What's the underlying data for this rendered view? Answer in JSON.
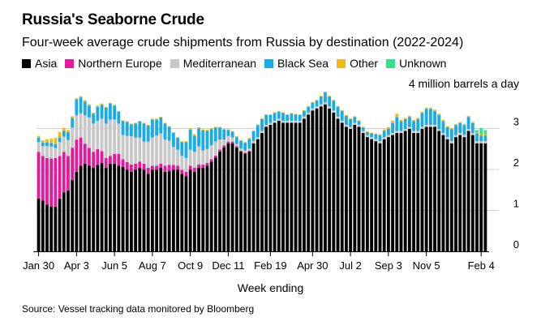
{
  "chart_data": {
    "type": "bar",
    "stacked": true,
    "title": "Russia's Seaborne Crude",
    "subtitle": "Four-week average crude shipments from Russia by destination (2022-2024)",
    "unit_label": "4 million barrels a day",
    "xlabel": "Week ending",
    "source": "Source: Vessel tracking data monitored by Bloomberg",
    "ylim": [
      0,
      4
    ],
    "y_ticks": [
      "0",
      "1",
      "2",
      "3"
    ],
    "x_tick_labels": [
      {
        "label": "Jan 30",
        "index": 0
      },
      {
        "label": "Apr 3",
        "index": 9
      },
      {
        "label": "Jun 5",
        "index": 18
      },
      {
        "label": "Aug 7",
        "index": 27
      },
      {
        "label": "Oct 9",
        "index": 36
      },
      {
        "label": "Dec 11",
        "index": 45
      },
      {
        "label": "Feb 19",
        "index": 55
      },
      {
        "label": "Apr 30",
        "index": 65
      },
      {
        "label": "Jul 2",
        "index": 74
      },
      {
        "label": "Sep 3",
        "index": 83
      },
      {
        "label": "Nov 5",
        "index": 92
      },
      {
        "label": "Feb 4",
        "index": 105
      }
    ],
    "legend": [
      {
        "name": "Asia",
        "color": "#000000"
      },
      {
        "name": "Northern Europe",
        "color": "#e6199a"
      },
      {
        "name": "Mediterranean",
        "color": "#c8c8c8"
      },
      {
        "name": "Black Sea",
        "color": "#1aace8"
      },
      {
        "name": "Other",
        "color": "#f2b90f"
      },
      {
        "name": "Unknown",
        "color": "#33e08c"
      }
    ],
    "series": [
      {
        "name": "Asia",
        "color": "#000000",
        "values": [
          1.29,
          1.24,
          1.14,
          1.09,
          1.09,
          1.29,
          1.44,
          1.49,
          1.74,
          1.94,
          2.09,
          2.14,
          2.09,
          2.04,
          2.11,
          2.16,
          2.04,
          2.14,
          2.14,
          2.09,
          2.06,
          1.99,
          1.94,
          1.99,
          2.04,
          1.99,
          1.89,
          1.99,
          1.99,
          2.04,
          1.94,
          1.96,
          1.99,
          1.99,
          1.89,
          1.84,
          1.99,
          1.94,
          2.04,
          2.04,
          2.09,
          2.19,
          2.29,
          2.44,
          2.54,
          2.64,
          2.64,
          2.54,
          2.44,
          2.39,
          2.44,
          2.64,
          2.74,
          2.89,
          3.04,
          3.09,
          3.14,
          3.19,
          3.14,
          3.14,
          3.14,
          3.14,
          3.14,
          3.24,
          3.34,
          3.44,
          3.49,
          3.54,
          3.59,
          3.49,
          3.39,
          3.24,
          3.14,
          3.04,
          2.99,
          3.09,
          3.04,
          2.89,
          2.79,
          2.74,
          2.69,
          2.64,
          2.74,
          2.79,
          2.84,
          2.89,
          2.89,
          2.94,
          2.99,
          2.89,
          2.89,
          2.99,
          3.04,
          3.04,
          3.04,
          2.94,
          2.84,
          2.74,
          2.64,
          2.79,
          2.84,
          2.79,
          2.94,
          2.84,
          2.64,
          2.64,
          2.64
        ]
      },
      {
        "name": "Northern Europe",
        "color": "#e6199a",
        "values": [
          1.14,
          1.09,
          1.14,
          1.18,
          1.19,
          1.04,
          0.99,
          0.84,
          0.79,
          0.79,
          0.69,
          0.49,
          0.44,
          0.39,
          0.39,
          0.29,
          0.24,
          0.19,
          0.24,
          0.29,
          0.19,
          0.19,
          0.18,
          0.15,
          0.15,
          0.15,
          0.15,
          0.1,
          0.1,
          0.1,
          0.15,
          0.15,
          0.12,
          0.1,
          0.1,
          0.1,
          0.1,
          0.1,
          0.08,
          0.08,
          0.07,
          0.06,
          0.05,
          0.05,
          0.05,
          0.04,
          0.04,
          0.03,
          0.02,
          0.02,
          0.02,
          0.0,
          0.0,
          0.0,
          0.0,
          0.0,
          0.0,
          0.0,
          0.0,
          0.0,
          0.0,
          0.0,
          0.0,
          0.0,
          0.0,
          0.0,
          0.0,
          0.0,
          0.0,
          0.0,
          0.0,
          0.0,
          0.0,
          0.0,
          0.0,
          0.0,
          0.0,
          0.0,
          0.0,
          0.0,
          0.0,
          0.0,
          0.0,
          0.0,
          0.0,
          0.0,
          0.0,
          0.0,
          0.0,
          0.0,
          0.0,
          0.0,
          0.0,
          0.0,
          0.0,
          0.0,
          0.0,
          0.0,
          0.0,
          0.0,
          0.0,
          0.0,
          0.0,
          0.0,
          0.0,
          0.0,
          0.0
        ]
      },
      {
        "name": "Mediterranean",
        "color": "#c8c8c8",
        "values": [
          0.24,
          0.24,
          0.29,
          0.29,
          0.24,
          0.34,
          0.37,
          0.39,
          0.49,
          0.59,
          0.59,
          0.69,
          0.74,
          0.69,
          0.69,
          0.79,
          0.84,
          0.89,
          0.84,
          0.74,
          0.59,
          0.64,
          0.69,
          0.64,
          0.59,
          0.54,
          0.64,
          0.69,
          0.74,
          0.74,
          0.64,
          0.59,
          0.44,
          0.39,
          0.34,
          0.34,
          0.39,
          0.39,
          0.44,
          0.34,
          0.34,
          0.34,
          0.34,
          0.24,
          0.14,
          0.14,
          0.1,
          0.05,
          0.05,
          0.05,
          0.05,
          0.05,
          0.05,
          0.05,
          0.05,
          0.05,
          0.05,
          0.05,
          0.05,
          0.05,
          0.05,
          0.05,
          0.05,
          0.05,
          0.05,
          0.05,
          0.05,
          0.05,
          0.05,
          0.05,
          0.05,
          0.05,
          0.05,
          0.05,
          0.05,
          0.05,
          0.05,
          0.05,
          0.05,
          0.05,
          0.05,
          0.05,
          0.05,
          0.05,
          0.05,
          0.05,
          0.05,
          0.05,
          0.05,
          0.05,
          0.05,
          0.05,
          0.05,
          0.05,
          0.05,
          0.05,
          0.05,
          0.05,
          0.05,
          0.05,
          0.05,
          0.05,
          0.05,
          0.05,
          0.05,
          0.05,
          0.05
        ]
      },
      {
        "name": "Black Sea",
        "color": "#1aace8",
        "values": [
          0.1,
          0.09,
          0.09,
          0.09,
          0.1,
          0.11,
          0.14,
          0.19,
          0.24,
          0.39,
          0.39,
          0.34,
          0.29,
          0.24,
          0.34,
          0.34,
          0.39,
          0.39,
          0.34,
          0.29,
          0.34,
          0.34,
          0.29,
          0.34,
          0.39,
          0.44,
          0.39,
          0.44,
          0.39,
          0.39,
          0.39,
          0.34,
          0.34,
          0.29,
          0.34,
          0.39,
          0.49,
          0.39,
          0.44,
          0.49,
          0.44,
          0.39,
          0.34,
          0.29,
          0.24,
          0.14,
          0.14,
          0.17,
          0.19,
          0.19,
          0.24,
          0.24,
          0.29,
          0.29,
          0.24,
          0.19,
          0.19,
          0.17,
          0.19,
          0.14,
          0.17,
          0.15,
          0.14,
          0.14,
          0.14,
          0.14,
          0.14,
          0.19,
          0.24,
          0.24,
          0.24,
          0.24,
          0.24,
          0.22,
          0.19,
          0.14,
          0.09,
          0.08,
          0.07,
          0.09,
          0.12,
          0.15,
          0.15,
          0.15,
          0.24,
          0.34,
          0.24,
          0.24,
          0.24,
          0.24,
          0.29,
          0.34,
          0.39,
          0.39,
          0.34,
          0.34,
          0.29,
          0.24,
          0.29,
          0.24,
          0.24,
          0.24,
          0.29,
          0.24,
          0.19,
          0.14,
          0.14
        ]
      },
      {
        "name": "Other",
        "color": "#f2b90f",
        "values": [
          0.05,
          0.05,
          0.08,
          0.1,
          0.15,
          0.14,
          0.08,
          0.05,
          0.04,
          0.03,
          0.03,
          0.03,
          0.03,
          0.03,
          0.03,
          0.03,
          0.02,
          0.02,
          0.02,
          0.02,
          0.02,
          0.02,
          0.02,
          0.02,
          0.02,
          0.02,
          0.02,
          0.02,
          0.02,
          0.02,
          0.02,
          0.02,
          0.02,
          0.02,
          0.02,
          0.02,
          0.04,
          0.04,
          0.03,
          0.03,
          0.03,
          0.03,
          0.02,
          0.02,
          0.02,
          0.02,
          0.02,
          0.02,
          0.02,
          0.02,
          0.02,
          0.02,
          0.02,
          0.02,
          0.02,
          0.02,
          0.02,
          0.02,
          0.02,
          0.02,
          0.02,
          0.02,
          0.02,
          0.02,
          0.02,
          0.02,
          0.02,
          0.02,
          0.02,
          0.02,
          0.02,
          0.02,
          0.02,
          0.02,
          0.02,
          0.02,
          0.02,
          0.02,
          0.02,
          0.02,
          0.02,
          0.02,
          0.04,
          0.04,
          0.06,
          0.08,
          0.03,
          0.03,
          0.03,
          0.03,
          0.03,
          0.03,
          0.03,
          0.03,
          0.03,
          0.03,
          0.03,
          0.03,
          0.03,
          0.03,
          0.03,
          0.03,
          0.03,
          0.03,
          0.03,
          0.03,
          0.03
        ]
      },
      {
        "name": "Unknown",
        "color": "#33e08c",
        "values": [
          0.0,
          0.0,
          0.0,
          0.0,
          0.0,
          0.0,
          0.0,
          0.0,
          0.0,
          0.0,
          0.0,
          0.0,
          0.0,
          0.0,
          0.0,
          0.0,
          0.0,
          0.0,
          0.0,
          0.0,
          0.0,
          0.0,
          0.0,
          0.0,
          0.0,
          0.0,
          0.0,
          0.0,
          0.0,
          0.0,
          0.0,
          0.0,
          0.0,
          0.0,
          0.0,
          0.0,
          0.0,
          0.0,
          0.0,
          0.0,
          0.0,
          0.0,
          0.0,
          0.0,
          0.0,
          0.0,
          0.0,
          0.0,
          0.0,
          0.0,
          0.0,
          0.0,
          0.0,
          0.0,
          0.0,
          0.0,
          0.0,
          0.0,
          0.0,
          0.0,
          0.0,
          0.0,
          0.0,
          0.0,
          0.0,
          0.0,
          0.0,
          0.0,
          0.0,
          0.0,
          0.0,
          0.0,
          0.0,
          0.0,
          0.0,
          0.0,
          0.0,
          0.0,
          0.0,
          0.0,
          0.0,
          0.0,
          0.0,
          0.0,
          0.0,
          0.0,
          0.0,
          0.0,
          0.0,
          0.0,
          0.0,
          0.0,
          0.0,
          0.0,
          0.0,
          0.0,
          0.0,
          0.0,
          0.0,
          0.0,
          0.0,
          0.0,
          0.0,
          0.0,
          0.05,
          0.15,
          0.1
        ]
      }
    ]
  }
}
